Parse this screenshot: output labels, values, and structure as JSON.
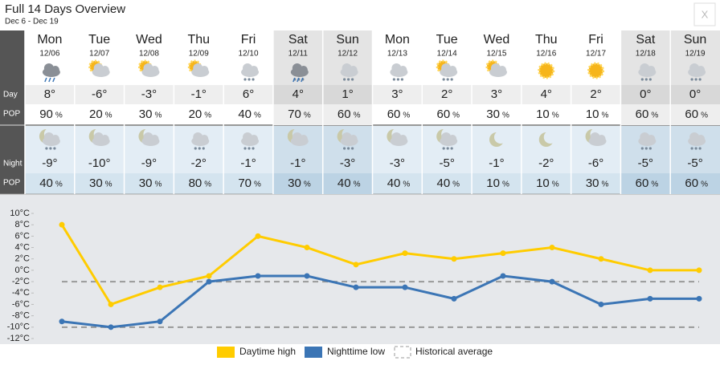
{
  "header": {
    "title": "Full 14 Days Overview",
    "subtitle": "Dec 6 - Dec 19",
    "close": "X"
  },
  "forecast": {
    "day_label": "Day",
    "night_label": "Night",
    "pop_label": "POP",
    "pop_unit": "%",
    "days": [
      {
        "name": "Mon",
        "date": "12/06",
        "day_temp": "8°",
        "day_pop": "90",
        "night_temp": "-9°",
        "night_pop": "40"
      },
      {
        "name": "Tue",
        "date": "12/07",
        "day_temp": "-6°",
        "day_pop": "20",
        "night_temp": "-10°",
        "night_pop": "30"
      },
      {
        "name": "Wed",
        "date": "12/08",
        "day_temp": "-3°",
        "day_pop": "30",
        "night_temp": "-9°",
        "night_pop": "30"
      },
      {
        "name": "Thu",
        "date": "12/09",
        "day_temp": "-1°",
        "day_pop": "20",
        "night_temp": "-2°",
        "night_pop": "80"
      },
      {
        "name": "Fri",
        "date": "12/10",
        "day_temp": "6°",
        "day_pop": "40",
        "night_temp": "-1°",
        "night_pop": "70"
      },
      {
        "name": "Sat",
        "date": "12/11",
        "day_temp": "4°",
        "day_pop": "70",
        "night_temp": "-1°",
        "night_pop": "30"
      },
      {
        "name": "Sun",
        "date": "12/12",
        "day_temp": "1°",
        "day_pop": "60",
        "night_temp": "-3°",
        "night_pop": "40"
      },
      {
        "name": "Mon",
        "date": "12/13",
        "day_temp": "3°",
        "day_pop": "60",
        "night_temp": "-3°",
        "night_pop": "40"
      },
      {
        "name": "Tue",
        "date": "12/14",
        "day_temp": "2°",
        "day_pop": "60",
        "night_temp": "-5°",
        "night_pop": "40"
      },
      {
        "name": "Wed",
        "date": "12/15",
        "day_temp": "3°",
        "day_pop": "30",
        "night_temp": "-1°",
        "night_pop": "10"
      },
      {
        "name": "Thu",
        "date": "12/16",
        "day_temp": "4°",
        "day_pop": "10",
        "night_temp": "-2°",
        "night_pop": "10"
      },
      {
        "name": "Fri",
        "date": "12/17",
        "day_temp": "2°",
        "day_pop": "10",
        "night_temp": "-6°",
        "night_pop": "30"
      },
      {
        "name": "Sat",
        "date": "12/18",
        "day_temp": "0°",
        "day_pop": "60",
        "night_temp": "-5°",
        "night_pop": "60"
      },
      {
        "name": "Sun",
        "date": "12/19",
        "day_temp": "0°",
        "day_pop": "60",
        "night_temp": "-5°",
        "night_pop": "60"
      }
    ]
  },
  "chart_data": {
    "type": "line",
    "series": [
      {
        "name": "Daytime high",
        "color": "#ffcc00",
        "values": [
          8,
          -6,
          -3,
          -1,
          6,
          4,
          1,
          3,
          2,
          3,
          4,
          2,
          0,
          0
        ]
      },
      {
        "name": "Nighttime low",
        "color": "#3b75b5",
        "values": [
          -9,
          -10,
          -9,
          -2,
          -1,
          -1,
          -3,
          -3,
          -5,
          -1,
          -2,
          -6,
          -5,
          -5
        ]
      }
    ],
    "reference_lines": {
      "name": "Historical average",
      "color": "#999999",
      "values": [
        -2,
        -10
      ]
    },
    "ylim": [
      -12,
      10
    ],
    "yticks": [
      {
        "value": 10,
        "label": "10°C"
      },
      {
        "value": 8,
        "label": "8°C"
      },
      {
        "value": 6,
        "label": "6°C"
      },
      {
        "value": 4,
        "label": "4°C"
      },
      {
        "value": 2,
        "label": "2°C"
      },
      {
        "value": 0,
        "label": "0°C"
      },
      {
        "value": -2,
        "label": "-2°C"
      },
      {
        "value": -4,
        "label": "-4°C"
      },
      {
        "value": -6,
        "label": "-6°C"
      },
      {
        "value": -8,
        "label": "-8°C"
      },
      {
        "value": -10,
        "label": "-10°C"
      },
      {
        "value": -12,
        "label": "-12°C"
      }
    ]
  }
}
